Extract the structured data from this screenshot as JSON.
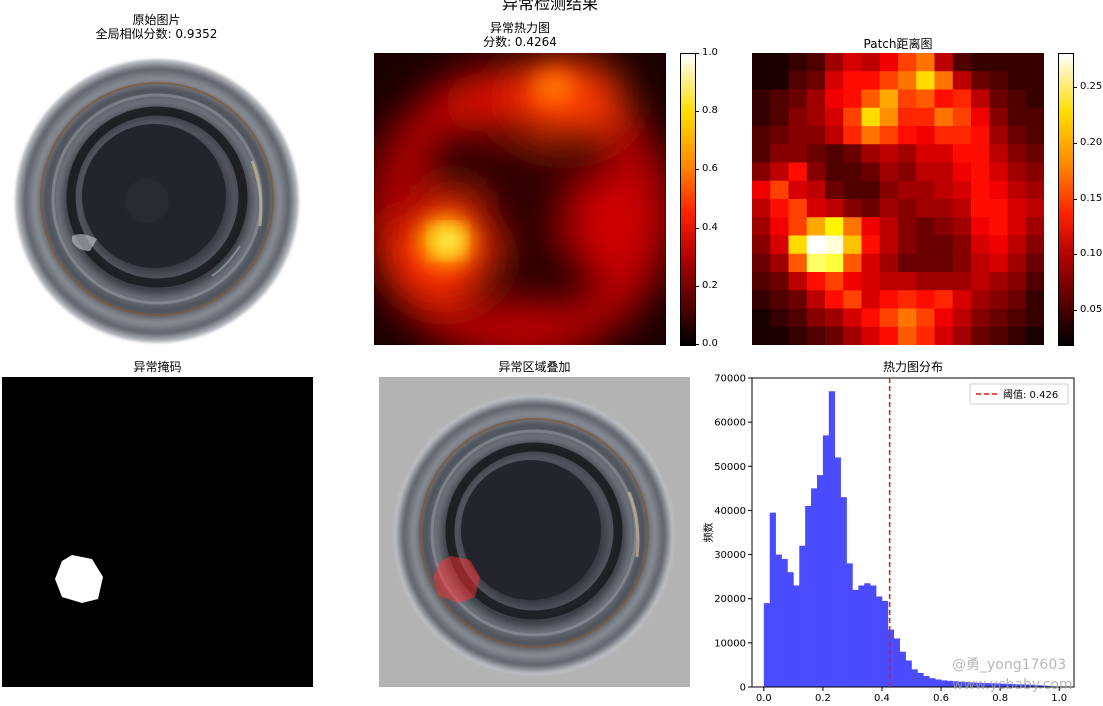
{
  "suptitle": "异常检测结果",
  "panels": {
    "original": {
      "title": "原始图片",
      "subtitle": "全局相似分数: 0.9352"
    },
    "heatmap": {
      "title": "异常热力图",
      "subtitle": "分数: 0.4264",
      "colorbar_ticks": [
        "1.0",
        "0.8",
        "0.6",
        "0.4",
        "0.2",
        "0.0"
      ]
    },
    "patch": {
      "title": "Patch距离图",
      "colorbar_ticks": [
        "0.25",
        "0.20",
        "0.15",
        "0.10",
        "0.05"
      ]
    },
    "mask": {
      "title": "异常掩码"
    },
    "overlay": {
      "title": "异常区域叠加"
    },
    "histogram": {
      "title": "热力图分布"
    }
  },
  "colors": {
    "histogram_bar": "#4b4bff",
    "threshold_line": "#e31a1c",
    "colormap": "hot"
  },
  "watermark": {
    "line1": "@勇_yong17603",
    "line2": "www.ycbaby.com"
  },
  "chart_data": [
    {
      "type": "heatmap",
      "name": "patch-distance-map",
      "title": "Patch距离图",
      "colormap": "hot",
      "clim": [
        0.02,
        0.28
      ],
      "grid_size": [
        16,
        16
      ],
      "values": [
        [
          0.03,
          0.03,
          0.04,
          0.05,
          0.08,
          0.1,
          0.09,
          0.11,
          0.14,
          0.16,
          0.09,
          0.05,
          0.04,
          0.04,
          0.04,
          0.04
        ],
        [
          0.03,
          0.03,
          0.05,
          0.06,
          0.1,
          0.12,
          0.12,
          0.14,
          0.16,
          0.2,
          0.16,
          0.09,
          0.06,
          0.05,
          0.04,
          0.04
        ],
        [
          0.04,
          0.05,
          0.06,
          0.08,
          0.11,
          0.12,
          0.15,
          0.18,
          0.14,
          0.15,
          0.12,
          0.13,
          0.09,
          0.06,
          0.05,
          0.04
        ],
        [
          0.04,
          0.05,
          0.07,
          0.08,
          0.1,
          0.14,
          0.2,
          0.17,
          0.13,
          0.13,
          0.16,
          0.14,
          0.11,
          0.07,
          0.05,
          0.05
        ],
        [
          0.05,
          0.06,
          0.07,
          0.07,
          0.09,
          0.13,
          0.16,
          0.14,
          0.12,
          0.11,
          0.13,
          0.13,
          0.12,
          0.08,
          0.06,
          0.05
        ],
        [
          0.05,
          0.07,
          0.07,
          0.06,
          0.05,
          0.06,
          0.08,
          0.09,
          0.08,
          0.1,
          0.1,
          0.12,
          0.12,
          0.09,
          0.07,
          0.06
        ],
        [
          0.07,
          0.09,
          0.12,
          0.07,
          0.05,
          0.05,
          0.06,
          0.08,
          0.07,
          0.09,
          0.09,
          0.11,
          0.12,
          0.1,
          0.08,
          0.07
        ],
        [
          0.11,
          0.14,
          0.1,
          0.09,
          0.06,
          0.05,
          0.05,
          0.07,
          0.08,
          0.08,
          0.09,
          0.1,
          0.12,
          0.11,
          0.09,
          0.08
        ],
        [
          0.09,
          0.12,
          0.14,
          0.1,
          0.09,
          0.07,
          0.06,
          0.08,
          0.07,
          0.08,
          0.08,
          0.09,
          0.12,
          0.12,
          0.1,
          0.09
        ],
        [
          0.08,
          0.11,
          0.14,
          0.18,
          0.21,
          0.16,
          0.11,
          0.09,
          0.07,
          0.06,
          0.07,
          0.08,
          0.11,
          0.12,
          0.1,
          0.08
        ],
        [
          0.07,
          0.1,
          0.2,
          0.28,
          0.27,
          0.19,
          0.12,
          0.09,
          0.07,
          0.06,
          0.06,
          0.07,
          0.1,
          0.11,
          0.09,
          0.07
        ],
        [
          0.06,
          0.08,
          0.15,
          0.24,
          0.23,
          0.15,
          0.1,
          0.08,
          0.06,
          0.06,
          0.06,
          0.07,
          0.09,
          0.1,
          0.08,
          0.06
        ],
        [
          0.05,
          0.06,
          0.09,
          0.12,
          0.14,
          0.11,
          0.1,
          0.09,
          0.09,
          0.08,
          0.08,
          0.08,
          0.09,
          0.08,
          0.07,
          0.05
        ],
        [
          0.04,
          0.05,
          0.06,
          0.09,
          0.12,
          0.14,
          0.1,
          0.12,
          0.13,
          0.12,
          0.13,
          0.1,
          0.08,
          0.07,
          0.06,
          0.04
        ],
        [
          0.03,
          0.04,
          0.05,
          0.07,
          0.08,
          0.1,
          0.12,
          0.14,
          0.16,
          0.14,
          0.11,
          0.09,
          0.07,
          0.06,
          0.05,
          0.04
        ],
        [
          0.03,
          0.03,
          0.04,
          0.05,
          0.06,
          0.08,
          0.1,
          0.12,
          0.15,
          0.13,
          0.1,
          0.08,
          0.06,
          0.05,
          0.04,
          0.03
        ]
      ]
    },
    {
      "type": "bar",
      "name": "heatmap-distribution-histogram",
      "title": "热力图分布",
      "xlabel": "",
      "ylabel": "频数",
      "xlim": [
        -0.04,
        1.05
      ],
      "ylim": [
        0,
        70000
      ],
      "xticks": [
        0.0,
        0.2,
        0.4,
        0.6,
        0.8,
        1.0
      ],
      "xtick_labels": [
        "0.0",
        "0.2",
        "0.4",
        "0.6",
        "0.8",
        "1.0"
      ],
      "yticks": [
        0,
        10000,
        20000,
        30000,
        40000,
        50000,
        60000,
        70000
      ],
      "ytick_labels": [
        "0",
        "10000",
        "20000",
        "30000",
        "40000",
        "50000",
        "60000",
        "70000"
      ],
      "bin_width": 0.02,
      "bin_starts": [
        0.0,
        0.02,
        0.04,
        0.06,
        0.08,
        0.1,
        0.12,
        0.14,
        0.16,
        0.18,
        0.2,
        0.22,
        0.24,
        0.26,
        0.28,
        0.3,
        0.32,
        0.34,
        0.36,
        0.38,
        0.4,
        0.42,
        0.44,
        0.46,
        0.48,
        0.5,
        0.52,
        0.54,
        0.56,
        0.58,
        0.6,
        0.62,
        0.64,
        0.66,
        0.68,
        0.7,
        0.72,
        0.74,
        0.76,
        0.78,
        0.8,
        0.82,
        0.84,
        0.86,
        0.88,
        0.9,
        0.92,
        0.94,
        0.96,
        0.98
      ],
      "counts": [
        19000,
        39500,
        30000,
        29000,
        26000,
        23000,
        32000,
        41000,
        45000,
        48000,
        57000,
        67000,
        52000,
        43000,
        28000,
        22000,
        23000,
        23500,
        23000,
        20500,
        19500,
        13000,
        11000,
        8000,
        6000,
        4000,
        3200,
        2500,
        2000,
        1700,
        1500,
        1400,
        1300,
        1200,
        1100,
        1000,
        950,
        900,
        850,
        800,
        750,
        700,
        650,
        600,
        550,
        500,
        400,
        300,
        200,
        100
      ],
      "threshold": {
        "value": 0.426,
        "label": "阈值: 0.426"
      },
      "legend": "top-right",
      "grid": false
    }
  ]
}
